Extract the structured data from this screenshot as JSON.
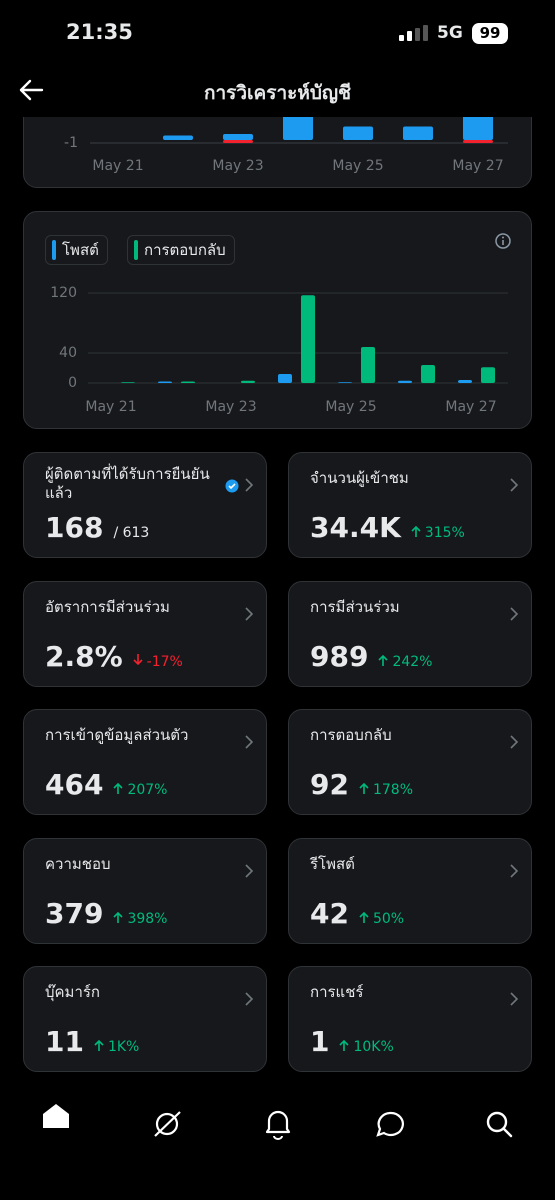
{
  "status_bar": {
    "time": "21:35",
    "network": "5G",
    "battery": "99"
  },
  "header": {
    "title": "การวิเคราะห์บัญชี"
  },
  "chart_data": [
    {
      "type": "bar",
      "categories": [
        "May 21",
        null,
        "May 23",
        null,
        "May 25",
        null,
        "May 27"
      ],
      "series": [
        {
          "color": "#1d9bf0",
          "values": [
            0,
            1.5,
            2,
            10,
            4.5,
            4.5,
            10
          ]
        },
        {
          "color": "#f4212e",
          "values": [
            0,
            0,
            -1,
            0,
            0,
            0,
            -1
          ]
        }
      ],
      "ylim": [
        -1,
        10
      ],
      "yticks": [
        -1
      ]
    },
    {
      "type": "bar",
      "categories": [
        "May 21",
        null,
        "May 23",
        null,
        "May 25",
        null,
        "May 27"
      ],
      "series": [
        {
          "name": "โพสต์",
          "color": "#1d9bf0",
          "values": [
            0,
            2,
            0,
            12,
            1,
            3,
            4
          ]
        },
        {
          "name": "การตอบกลับ",
          "color": "#00ba7c",
          "values": [
            1,
            2,
            3,
            117,
            48,
            24,
            21
          ]
        }
      ],
      "ylim": [
        0,
        120
      ],
      "yticks": [
        0,
        40,
        120
      ],
      "grid": true
    }
  ],
  "stats": [
    {
      "title": "ผู้ติดตามที่ได้รับการยืนยันแล้ว",
      "value": "168",
      "total": "/ 613",
      "verified": true
    },
    {
      "title": "จำนวนผู้เข้าชม",
      "value": "34.4K",
      "change": "315%",
      "trend": "up"
    },
    {
      "title": "อัตราการมีส่วนร่วม",
      "value": "2.8%",
      "change": "-17%",
      "trend": "down"
    },
    {
      "title": "การมีส่วนร่วม",
      "value": "989",
      "change": "242%",
      "trend": "up"
    },
    {
      "title": "การเข้าดูข้อมูลส่วนตัว",
      "value": "464",
      "change": "207%",
      "trend": "up"
    },
    {
      "title": "การตอบกลับ",
      "value": "92",
      "change": "178%",
      "trend": "up"
    },
    {
      "title": "ความชอบ",
      "value": "379",
      "change": "398%",
      "trend": "up"
    },
    {
      "title": "รีโพสต์",
      "value": "42",
      "change": "50%",
      "trend": "up"
    },
    {
      "title": "บุ๊คมาร์ก",
      "value": "11",
      "change": "1K%",
      "trend": "up"
    },
    {
      "title": "การแชร์",
      "value": "1",
      "change": "10K%",
      "trend": "up"
    }
  ]
}
